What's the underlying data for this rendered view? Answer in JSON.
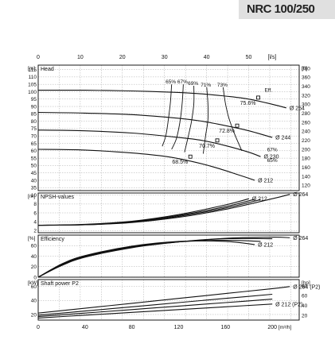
{
  "page_title": "NRC 100/250",
  "colors": {
    "grid": "#aaaaaa",
    "curve": "#111111",
    "banner": "#e0e0e0",
    "frame": "#000000"
  },
  "top_axis": {
    "label": "[l/s]",
    "ticks": [
      0,
      10,
      20,
      30,
      40,
      50
    ],
    "max": 62
  },
  "bottom_axis": {
    "label": "[m³/h]",
    "ticks": [
      0,
      40,
      80,
      120,
      160,
      200
    ],
    "max": 223
  },
  "chart_data": [
    {
      "type": "line",
      "name": "head",
      "panel_label": "Head",
      "left_unit": "[m]",
      "right_unit": "[ft]",
      "ylim": [
        33,
        118
      ],
      "yticks": [
        35,
        40,
        45,
        50,
        55,
        60,
        65,
        70,
        75,
        80,
        85,
        90,
        95,
        100,
        105,
        110,
        115
      ],
      "right_ticks": [
        120,
        140,
        160,
        180,
        200,
        220,
        240,
        260,
        280,
        300,
        320,
        340,
        360,
        380
      ],
      "series": [
        {
          "name": "Ø 264",
          "x": [
            0,
            40,
            80,
            120,
            140,
            160,
            180,
            200,
            212
          ],
          "y": [
            101,
            101,
            100.5,
            99.5,
            98.5,
            97,
            95,
            91.5,
            89
          ]
        },
        {
          "name": "Ø 244",
          "x": [
            0,
            40,
            80,
            120,
            140,
            160,
            180,
            200
          ],
          "y": [
            86,
            85.5,
            84.5,
            82,
            80,
            77,
            73.5,
            69
          ]
        },
        {
          "name": "Ø 230",
          "x": [
            0,
            40,
            80,
            120,
            140,
            160,
            180,
            190
          ],
          "y": [
            74,
            73.5,
            72,
            69,
            67,
            63.5,
            59,
            56
          ]
        },
        {
          "name": "Ø 212",
          "x": [
            0,
            40,
            80,
            110,
            130,
            150,
            170,
            185
          ],
          "y": [
            61,
            60.5,
            58.5,
            56,
            53,
            49,
            44,
            40
          ]
        }
      ],
      "efficiency_lines": [
        {
          "label": "65%",
          "x": [
            114,
            113,
            111,
            109,
            106
          ],
          "y": [
            105,
            93,
            80,
            70,
            63
          ]
        },
        {
          "label": "67%",
          "x": [
            124,
            123,
            121,
            118,
            114
          ],
          "y": [
            105,
            92,
            79,
            68,
            61
          ]
        },
        {
          "label": "69%",
          "x": [
            133,
            133,
            131,
            128,
            125
          ],
          "y": [
            104,
            92,
            80,
            69,
            59
          ]
        },
        {
          "label": "71%",
          "x": [
            144,
            145,
            145,
            143,
            141
          ],
          "y": [
            103,
            92,
            81,
            70,
            58
          ]
        },
        {
          "label": "73%",
          "x": [
            158,
            160,
            163,
            168,
            174
          ],
          "y": [
            103,
            92,
            82,
            71,
            60
          ]
        }
      ],
      "bep_points": [
        {
          "label": "75.6%",
          "x": 188,
          "y": 96
        },
        {
          "label": "72.8%",
          "x": 170,
          "y": 77
        },
        {
          "label": "70.7%",
          "x": 153,
          "y": 67
        },
        {
          "label": "68.5%",
          "x": 130,
          "y": 56
        }
      ],
      "eff_label": "Eff.",
      "extra_labels": [
        "67%",
        "65%"
      ]
    },
    {
      "type": "line",
      "name": "npsh",
      "panel_label": "NPSH-values",
      "left_unit": "[m]",
      "ylim": [
        1.5,
        10.5
      ],
      "yticks": [
        2,
        4,
        6,
        8,
        10
      ],
      "series": [
        {
          "name": "Ø 264",
          "x": [
            0,
            40,
            80,
            120,
            160,
            200,
            215
          ],
          "y": [
            3.2,
            3.3,
            3.8,
            5.0,
            6.8,
            9.2,
            10.2
          ]
        },
        {
          "name": "",
          "x": [
            0,
            40,
            80,
            120,
            160,
            190
          ],
          "y": [
            3.2,
            3.3,
            3.9,
            5.2,
            7.1,
            9.0
          ]
        },
        {
          "name": "",
          "x": [
            0,
            40,
            80,
            120,
            160,
            185
          ],
          "y": [
            3.2,
            3.35,
            4.0,
            5.4,
            7.4,
            9.1
          ]
        },
        {
          "name": "Ø 212",
          "x": [
            0,
            40,
            80,
            120,
            160,
            180
          ],
          "y": [
            3.2,
            3.4,
            4.1,
            5.6,
            7.8,
            9.2
          ]
        }
      ]
    },
    {
      "type": "line",
      "name": "efficiency",
      "panel_label": "Efficiency",
      "left_unit": "[%]",
      "ylim": [
        0,
        80
      ],
      "yticks": [
        0,
        20,
        40,
        60
      ],
      "series": [
        {
          "name": "Ø 264",
          "x": [
            0,
            20,
            40,
            80,
            120,
            160,
            200,
            215
          ],
          "y": [
            0,
            22,
            38,
            56,
            67,
            74,
            76,
            75
          ]
        },
        {
          "name": "",
          "x": [
            0,
            20,
            40,
            80,
            120,
            160,
            200
          ],
          "y": [
            0,
            23,
            39,
            57,
            67,
            73,
            73
          ]
        },
        {
          "name": "",
          "x": [
            0,
            20,
            40,
            80,
            120,
            160,
            190
          ],
          "y": [
            0,
            24,
            40,
            58,
            67,
            70,
            68
          ]
        },
        {
          "name": "Ø 212",
          "x": [
            0,
            20,
            40,
            80,
            120,
            160,
            185
          ],
          "y": [
            0,
            25,
            41,
            59,
            68,
            68,
            62
          ]
        }
      ]
    },
    {
      "type": "line",
      "name": "shaft_power",
      "panel_label": "Shaft power P2",
      "left_unit": "[kW]",
      "right_unit": "[hp]",
      "ylim": [
        12,
        70
      ],
      "yticks": [
        20,
        40,
        60
      ],
      "right_ticks": [
        20,
        40,
        60,
        80
      ],
      "series": [
        {
          "name": "Ø 264 (P2)",
          "x": [
            0,
            40,
            80,
            120,
            160,
            200,
            215
          ],
          "y": [
            22,
            29,
            36,
            43,
            50,
            57,
            60
          ]
        },
        {
          "name": "",
          "x": [
            0,
            40,
            80,
            120,
            160,
            200
          ],
          "y": [
            19,
            25,
            31,
            37,
            43,
            49
          ]
        },
        {
          "name": "",
          "x": [
            0,
            40,
            80,
            120,
            160,
            200
          ],
          "y": [
            17,
            22,
            27,
            32,
            37,
            42
          ]
        },
        {
          "name": "Ø 212 (P2)",
          "x": [
            0,
            40,
            80,
            120,
            160,
            200
          ],
          "y": [
            15,
            19,
            23,
            27,
            31,
            35
          ]
        }
      ]
    }
  ]
}
